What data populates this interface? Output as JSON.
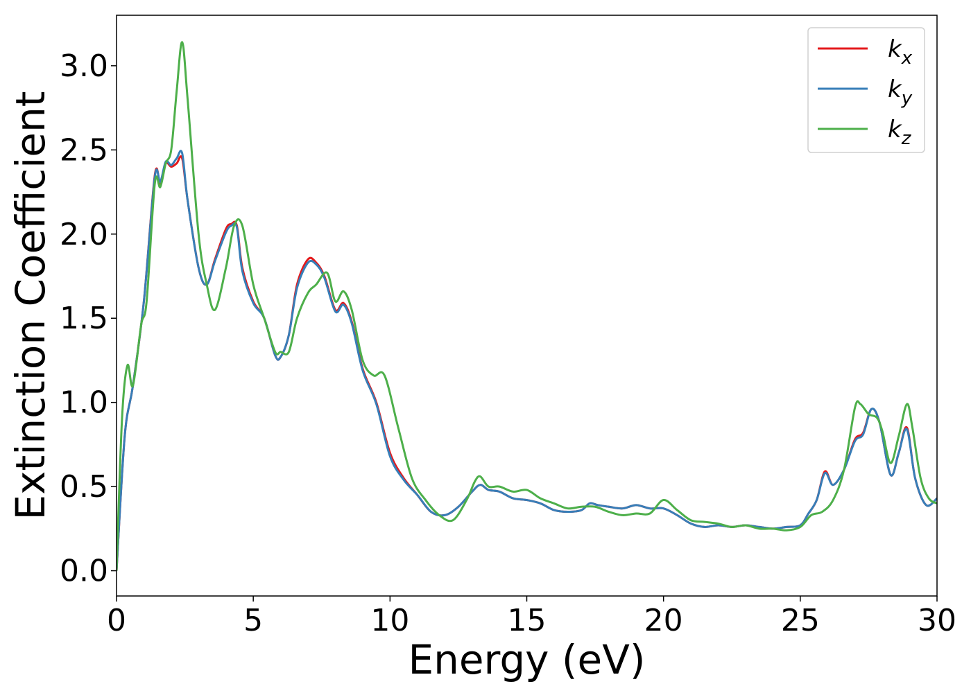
{
  "chart_data": {
    "type": "line",
    "xlabel": "Energy (eV)",
    "ylabel": "Extinction Coefficient",
    "xlim": [
      0,
      30
    ],
    "ylim": [
      -0.15,
      3.3
    ],
    "xticks": [
      "0",
      "5",
      "10",
      "15",
      "20",
      "25",
      "30"
    ],
    "yticks": [
      "0.0",
      "0.5",
      "1.0",
      "1.5",
      "2.0",
      "2.5",
      "3.0"
    ],
    "grid": false,
    "legend_position": "top-right",
    "series": [
      {
        "name": "k_x",
        "legend_base": "k",
        "legend_sub": "x",
        "color": "#e41a1c",
        "x": [
          0,
          0.3,
          0.6,
          1.0,
          1.4,
          1.6,
          1.8,
          2.0,
          2.2,
          2.4,
          2.6,
          3.0,
          3.3,
          3.6,
          4.0,
          4.2,
          4.4,
          4.6,
          5.0,
          5.4,
          5.8,
          6.0,
          6.3,
          6.6,
          7.0,
          7.3,
          7.6,
          8.0,
          8.3,
          8.6,
          9.0,
          9.5,
          10.0,
          10.5,
          11.0,
          11.5,
          12.0,
          12.5,
          13.0,
          13.3,
          13.6,
          14.0,
          14.5,
          15.0,
          15.5,
          16.0,
          16.5,
          17.0,
          17.3,
          17.6,
          18.0,
          18.5,
          19.0,
          19.5,
          20.0,
          20.5,
          21.0,
          21.5,
          22.0,
          22.5,
          23.0,
          23.5,
          24.0,
          24.5,
          25.0,
          25.3,
          25.6,
          25.9,
          26.2,
          26.6,
          27.0,
          27.3,
          27.6,
          27.9,
          28.3,
          28.6,
          28.9,
          29.2,
          29.6,
          30.0
        ],
        "values": [
          0.0,
          0.8,
          1.1,
          1.6,
          2.35,
          2.3,
          2.42,
          2.4,
          2.42,
          2.45,
          2.2,
          1.8,
          1.7,
          1.85,
          2.03,
          2.06,
          2.05,
          1.8,
          1.6,
          1.5,
          1.28,
          1.27,
          1.4,
          1.7,
          1.85,
          1.83,
          1.75,
          1.55,
          1.59,
          1.48,
          1.2,
          1.0,
          0.7,
          0.55,
          0.45,
          0.35,
          0.33,
          0.38,
          0.47,
          0.51,
          0.48,
          0.47,
          0.43,
          0.42,
          0.4,
          0.36,
          0.35,
          0.36,
          0.4,
          0.39,
          0.38,
          0.37,
          0.39,
          0.37,
          0.37,
          0.33,
          0.28,
          0.26,
          0.27,
          0.26,
          0.27,
          0.26,
          0.25,
          0.26,
          0.27,
          0.34,
          0.42,
          0.59,
          0.51,
          0.6,
          0.78,
          0.82,
          0.96,
          0.88,
          0.57,
          0.7,
          0.85,
          0.55,
          0.39,
          0.43
        ]
      },
      {
        "name": "k_y",
        "legend_base": "k",
        "legend_sub": "y",
        "color": "#377eb8",
        "x": [
          0,
          0.3,
          0.6,
          1.0,
          1.4,
          1.6,
          1.8,
          2.0,
          2.2,
          2.4,
          2.6,
          3.0,
          3.3,
          3.6,
          4.0,
          4.2,
          4.4,
          4.6,
          5.0,
          5.4,
          5.8,
          6.0,
          6.3,
          6.6,
          7.0,
          7.3,
          7.6,
          8.0,
          8.3,
          8.6,
          9.0,
          9.5,
          10.0,
          10.5,
          11.0,
          11.5,
          12.0,
          12.5,
          13.0,
          13.3,
          13.6,
          14.0,
          14.5,
          15.0,
          15.5,
          16.0,
          16.5,
          17.0,
          17.3,
          17.6,
          18.0,
          18.5,
          19.0,
          19.5,
          20.0,
          20.5,
          21.0,
          21.5,
          22.0,
          22.5,
          23.0,
          23.5,
          24.0,
          24.5,
          25.0,
          25.3,
          25.6,
          25.9,
          26.2,
          26.6,
          27.0,
          27.3,
          27.6,
          27.9,
          28.3,
          28.6,
          28.9,
          29.2,
          29.6,
          30.0
        ],
        "values": [
          0.0,
          0.8,
          1.1,
          1.6,
          2.34,
          2.31,
          2.43,
          2.41,
          2.45,
          2.48,
          2.2,
          1.8,
          1.7,
          1.84,
          2.01,
          2.05,
          2.04,
          1.78,
          1.59,
          1.5,
          1.28,
          1.27,
          1.4,
          1.68,
          1.83,
          1.82,
          1.74,
          1.54,
          1.58,
          1.47,
          1.19,
          0.99,
          0.68,
          0.54,
          0.45,
          0.35,
          0.33,
          0.38,
          0.47,
          0.51,
          0.48,
          0.47,
          0.43,
          0.42,
          0.4,
          0.36,
          0.35,
          0.36,
          0.4,
          0.39,
          0.38,
          0.37,
          0.39,
          0.37,
          0.37,
          0.33,
          0.28,
          0.26,
          0.27,
          0.26,
          0.27,
          0.26,
          0.25,
          0.26,
          0.27,
          0.34,
          0.42,
          0.58,
          0.51,
          0.6,
          0.77,
          0.81,
          0.96,
          0.88,
          0.57,
          0.7,
          0.84,
          0.55,
          0.39,
          0.43
        ]
      },
      {
        "name": "k_z",
        "legend_base": "k",
        "legend_sub": "z",
        "color": "#4daf4a",
        "x": [
          0,
          0.2,
          0.4,
          0.6,
          0.9,
          1.1,
          1.4,
          1.6,
          1.8,
          2.0,
          2.2,
          2.4,
          2.6,
          3.0,
          3.3,
          3.6,
          4.0,
          4.3,
          4.6,
          5.0,
          5.4,
          5.8,
          6.0,
          6.3,
          6.6,
          7.0,
          7.3,
          7.7,
          8.0,
          8.3,
          8.6,
          9.0,
          9.4,
          9.8,
          10.3,
          10.8,
          11.3,
          11.8,
          12.3,
          12.8,
          13.1,
          13.3,
          13.6,
          14.0,
          14.5,
          15.0,
          15.5,
          16.0,
          16.5,
          17.0,
          17.5,
          18.0,
          18.5,
          19.0,
          19.5,
          20.0,
          20.5,
          21.0,
          21.5,
          22.0,
          22.5,
          23.0,
          23.5,
          24.0,
          24.5,
          25.0,
          25.4,
          25.8,
          26.2,
          26.6,
          27.0,
          27.2,
          27.5,
          27.8,
          28.0,
          28.3,
          28.6,
          28.9,
          29.1,
          29.4,
          29.7,
          30.0
        ],
        "values": [
          0.0,
          0.9,
          1.22,
          1.1,
          1.46,
          1.6,
          2.3,
          2.28,
          2.42,
          2.5,
          2.85,
          3.14,
          2.8,
          2.0,
          1.7,
          1.55,
          1.8,
          2.05,
          2.05,
          1.7,
          1.5,
          1.3,
          1.3,
          1.3,
          1.5,
          1.65,
          1.7,
          1.77,
          1.6,
          1.66,
          1.55,
          1.25,
          1.16,
          1.16,
          0.85,
          0.55,
          0.42,
          0.33,
          0.3,
          0.42,
          0.53,
          0.56,
          0.5,
          0.5,
          0.47,
          0.48,
          0.43,
          0.4,
          0.37,
          0.38,
          0.38,
          0.35,
          0.33,
          0.34,
          0.34,
          0.42,
          0.36,
          0.3,
          0.29,
          0.28,
          0.26,
          0.27,
          0.25,
          0.25,
          0.24,
          0.26,
          0.33,
          0.35,
          0.42,
          0.6,
          0.97,
          0.99,
          0.93,
          0.91,
          0.83,
          0.64,
          0.8,
          0.99,
          0.85,
          0.55,
          0.43,
          0.4
        ]
      }
    ]
  }
}
